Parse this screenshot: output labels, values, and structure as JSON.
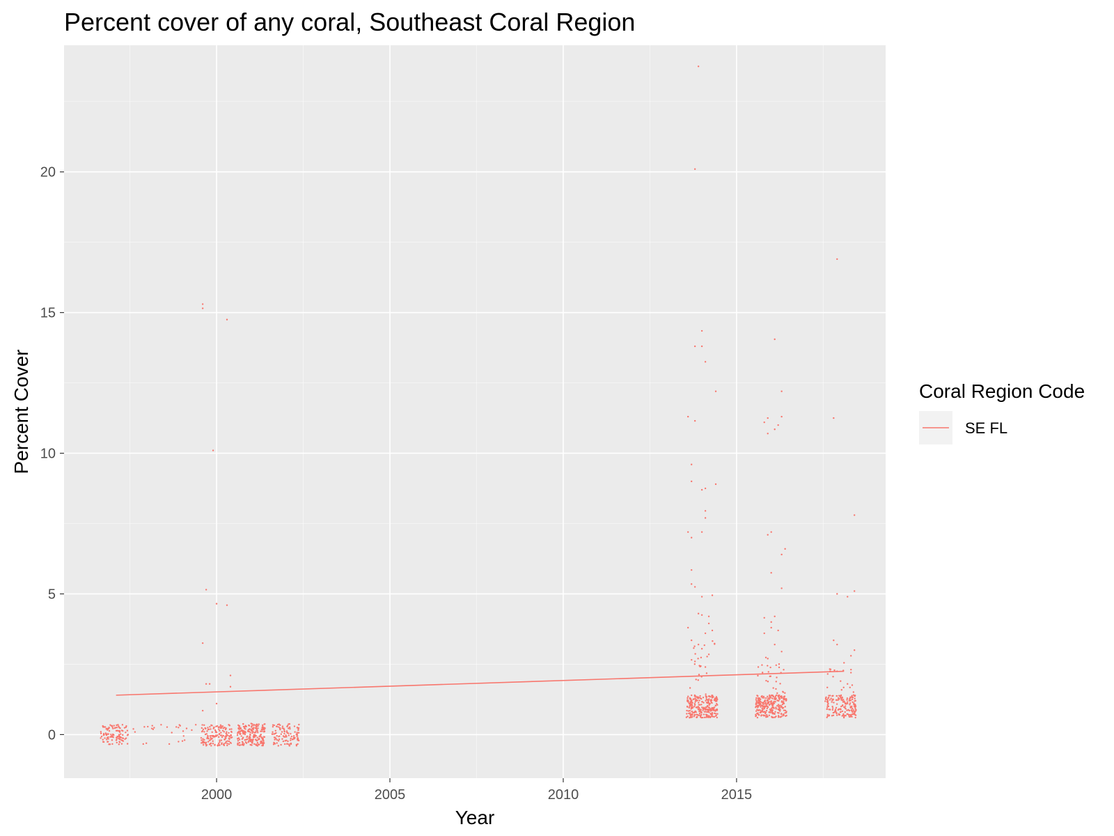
{
  "chart_data": {
    "type": "scatter",
    "title": "Percent cover of any coral, Southeast Coral Region",
    "xlabel": "Year",
    "ylabel": "Percent Cover",
    "xlim": [
      1995.6,
      2019.3
    ],
    "ylim": [
      -1.55,
      24.5
    ],
    "x_ticks": [
      2000,
      2005,
      2010,
      2015
    ],
    "x_tick_labels": [
      "2000",
      "2005",
      "2010",
      "2015"
    ],
    "y_ticks": [
      0,
      5,
      10,
      15,
      20
    ],
    "y_tick_labels": [
      "0",
      "5",
      "10",
      "15",
      "20"
    ],
    "grid": true,
    "legend": {
      "title": "Coral Region Code",
      "position": "right",
      "entries": [
        {
          "label": "SE FL",
          "color": "#F8766D"
        }
      ]
    },
    "colors": {
      "panel_background": "#EBEBEB",
      "grid": "#FFFFFF",
      "series": "#F8766D",
      "tick_text": "#4D4D4D"
    },
    "series": [
      {
        "name": "SE FL",
        "trend": [
          [
            1997.1,
            1.4
          ],
          [
            2018.1,
            2.25
          ]
        ],
        "outliers": [
          [
            1999.6,
            15.3
          ],
          [
            1999.6,
            15.15
          ],
          [
            2000.3,
            14.75
          ],
          [
            1999.9,
            10.1
          ],
          [
            1999.7,
            5.15
          ],
          [
            2000.0,
            4.65
          ],
          [
            2000.3,
            4.6
          ],
          [
            1999.6,
            3.25
          ],
          [
            1999.8,
            1.8
          ],
          [
            1999.7,
            1.8
          ],
          [
            2000.4,
            2.1
          ],
          [
            2000.4,
            1.7
          ],
          [
            1999.6,
            0.85
          ],
          [
            2000.0,
            1.1
          ],
          [
            2013.9,
            23.75
          ],
          [
            2013.8,
            20.1
          ],
          [
            2014.0,
            14.35
          ],
          [
            2013.8,
            13.8
          ],
          [
            2014.0,
            13.8
          ],
          [
            2014.1,
            13.25
          ],
          [
            2014.4,
            12.2
          ],
          [
            2013.6,
            11.3
          ],
          [
            2013.8,
            11.15
          ],
          [
            2013.7,
            9.6
          ],
          [
            2013.7,
            9.0
          ],
          [
            2014.0,
            8.7
          ],
          [
            2014.1,
            8.75
          ],
          [
            2014.4,
            8.9
          ],
          [
            2014.1,
            7.95
          ],
          [
            2014.1,
            7.7
          ],
          [
            2014.0,
            7.2
          ],
          [
            2013.6,
            7.2
          ],
          [
            2013.7,
            7.0
          ],
          [
            2013.7,
            5.85
          ],
          [
            2013.7,
            5.35
          ],
          [
            2013.8,
            5.25
          ],
          [
            2014.0,
            4.9
          ],
          [
            2014.3,
            4.95
          ],
          [
            2013.9,
            4.3
          ],
          [
            2014.0,
            4.25
          ],
          [
            2014.2,
            4.2
          ],
          [
            2014.2,
            3.95
          ],
          [
            2013.6,
            3.8
          ],
          [
            2014.3,
            3.7
          ],
          [
            2014.1,
            3.6
          ],
          [
            2013.7,
            3.35
          ],
          [
            2013.9,
            3.2
          ],
          [
            2014.0,
            3.05
          ],
          [
            2014.2,
            2.85
          ],
          [
            2013.8,
            2.6
          ],
          [
            2014.1,
            2.4
          ],
          [
            2015.9,
            11.25
          ],
          [
            2015.8,
            11.1
          ],
          [
            2016.3,
            11.3
          ],
          [
            2016.2,
            11.0
          ],
          [
            2016.1,
            10.85
          ],
          [
            2015.9,
            10.7
          ],
          [
            2016.1,
            14.05
          ],
          [
            2016.3,
            12.2
          ],
          [
            2015.9,
            7.1
          ],
          [
            2016.0,
            7.2
          ],
          [
            2016.4,
            6.6
          ],
          [
            2016.3,
            6.4
          ],
          [
            2016.0,
            5.75
          ],
          [
            2016.3,
            5.2
          ],
          [
            2015.8,
            4.15
          ],
          [
            2016.1,
            4.2
          ],
          [
            2016.0,
            4.0
          ],
          [
            2016.0,
            3.8
          ],
          [
            2016.2,
            3.7
          ],
          [
            2015.8,
            3.6
          ],
          [
            2016.1,
            3.2
          ],
          [
            2016.3,
            2.95
          ],
          [
            2015.9,
            2.7
          ],
          [
            2017.9,
            16.9
          ],
          [
            2017.8,
            11.25
          ],
          [
            2018.4,
            7.8
          ],
          [
            2017.9,
            5.0
          ],
          [
            2018.4,
            5.1
          ],
          [
            2018.2,
            4.9
          ],
          [
            2017.8,
            3.35
          ],
          [
            2017.9,
            3.2
          ],
          [
            2018.4,
            3.0
          ],
          [
            2018.3,
            2.8
          ],
          [
            2018.1,
            2.55
          ],
          [
            2017.9,
            2.25
          ],
          [
            2018.3,
            2.2
          ],
          [
            2017.7,
            2.25
          ],
          [
            2018.0,
            1.9
          ],
          [
            2018.2,
            1.8
          ],
          [
            1998.4,
            0.35
          ],
          [
            1998.9,
            0.25
          ],
          [
            1999.4,
            0.35
          ],
          [
            1997.6,
            0.2
          ]
        ],
        "clusters": [
          {
            "x": [
              1996.65,
              1997.45
            ],
            "y": [
              -0.35,
              0.35
            ],
            "n": 110
          },
          {
            "x": [
              1997.6,
              1999.45
            ],
            "y": [
              -0.4,
              0.35
            ],
            "n": 22
          },
          {
            "x": [
              1999.55,
              2000.45
            ],
            "y": [
              -0.4,
              0.35
            ],
            "n": 150
          },
          {
            "x": [
              2000.6,
              2001.4
            ],
            "y": [
              -0.4,
              0.4
            ],
            "n": 210
          },
          {
            "x": [
              2001.6,
              2002.4
            ],
            "y": [
              -0.4,
              0.4
            ],
            "n": 110
          },
          {
            "x": [
              2013.55,
              2014.45
            ],
            "y": [
              0.6,
              1.4
            ],
            "n": 260
          },
          {
            "x": [
              2015.55,
              2016.45
            ],
            "y": [
              0.6,
              1.4
            ],
            "n": 260
          },
          {
            "x": [
              2017.55,
              2018.45
            ],
            "y": [
              0.6,
              1.4
            ],
            "n": 170
          },
          {
            "x": [
              2013.6,
              2014.4
            ],
            "y": [
              1.4,
              3.4
            ],
            "n": 22
          },
          {
            "x": [
              2015.6,
              2016.4
            ],
            "y": [
              1.4,
              2.8
            ],
            "n": 26
          },
          {
            "x": [
              2017.6,
              2018.4
            ],
            "y": [
              1.4,
              2.4
            ],
            "n": 14
          }
        ]
      }
    ]
  }
}
